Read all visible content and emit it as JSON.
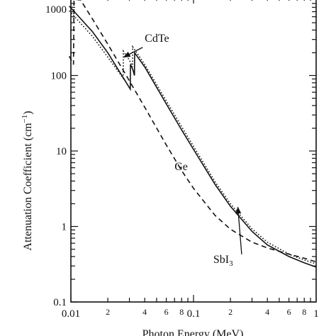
{
  "chart_data": {
    "type": "line",
    "xscale": "log",
    "yscale": "log",
    "xlim": [
      0.01,
      1
    ],
    "ylim": [
      0.1,
      1000
    ],
    "grid": false,
    "xlabel": "Photon Energy (MeV)",
    "ylabel": "Attenuation Coefficient (cm",
    "ylabel_sup": "−1",
    "ylabel_end": ")",
    "x_major_ticks": [
      {
        "value": 0.01,
        "label": "0.01"
      },
      {
        "value": 0.1,
        "label": "0.1"
      },
      {
        "value": 1,
        "label": "1"
      }
    ],
    "x_minor_ticks": [
      {
        "value": 0.02,
        "label": "2"
      },
      {
        "value": 0.04,
        "label": "4"
      },
      {
        "value": 0.06,
        "label": "6"
      },
      {
        "value": 0.08,
        "label": "8"
      },
      {
        "value": 0.2,
        "label": "2"
      },
      {
        "value": 0.4,
        "label": "4"
      },
      {
        "value": 0.6,
        "label": "6"
      },
      {
        "value": 0.8,
        "label": "8"
      }
    ],
    "y_major_ticks": [
      {
        "value": 1000,
        "label": "1000"
      },
      {
        "value": 100,
        "label": "100"
      },
      {
        "value": 10,
        "label": "10"
      },
      {
        "value": 1,
        "label": "1"
      },
      {
        "value": 0.1,
        "label": "0.1"
      }
    ],
    "series": [
      {
        "name": "Ge",
        "style": "dashed",
        "points": [
          [
            0.0097,
            180
          ],
          [
            0.0105,
            140
          ],
          [
            0.0106,
            1020
          ],
          [
            0.012,
            1000
          ],
          [
            0.015,
            560
          ],
          [
            0.02,
            260
          ],
          [
            0.03,
            85
          ],
          [
            0.04,
            38
          ],
          [
            0.06,
            12
          ],
          [
            0.08,
            5.5
          ],
          [
            0.1,
            3.2
          ],
          [
            0.15,
            1.4
          ],
          [
            0.2,
            0.92
          ],
          [
            0.3,
            0.62
          ],
          [
            0.4,
            0.52
          ],
          [
            0.6,
            0.43
          ],
          [
            0.8,
            0.38
          ],
          [
            1.0,
            0.34
          ]
        ]
      },
      {
        "name": "SbI3",
        "style": "solid",
        "points": [
          [
            0.0097,
            830
          ],
          [
            0.015,
            380
          ],
          [
            0.02,
            200
          ],
          [
            0.0305,
            66
          ],
          [
            0.0306,
            140
          ],
          [
            0.032,
            120
          ],
          [
            0.033,
            100
          ],
          [
            0.0331,
            200
          ],
          [
            0.04,
            130
          ],
          [
            0.06,
            42
          ],
          [
            0.08,
            19
          ],
          [
            0.1,
            10.5
          ],
          [
            0.15,
            3.6
          ],
          [
            0.2,
            1.85
          ],
          [
            0.3,
            0.86
          ],
          [
            0.4,
            0.57
          ],
          [
            0.6,
            0.4
          ],
          [
            0.8,
            0.33
          ],
          [
            1.0,
            0.29
          ]
        ]
      },
      {
        "name": "CdTe",
        "style": "dotted",
        "points": [
          [
            0.0097,
            720
          ],
          [
            0.015,
            330
          ],
          [
            0.02,
            175
          ],
          [
            0.0267,
            92
          ],
          [
            0.0268,
            210
          ],
          [
            0.03,
            160
          ],
          [
            0.0318,
            130
          ],
          [
            0.0319,
            240
          ],
          [
            0.04,
            140
          ],
          [
            0.06,
            46
          ],
          [
            0.08,
            21
          ],
          [
            0.1,
            11.5
          ],
          [
            0.15,
            3.9
          ],
          [
            0.2,
            2.0
          ],
          [
            0.3,
            0.93
          ],
          [
            0.4,
            0.62
          ],
          [
            0.6,
            0.43
          ],
          [
            0.8,
            0.36
          ],
          [
            1.0,
            0.32
          ]
        ]
      }
    ],
    "annotations": [
      {
        "text": "CdTe",
        "at": [
          0.04,
          280
        ],
        "arrow_to": [
          0.027,
          175
        ]
      },
      {
        "text": "Ge",
        "at": [
          0.07,
          5.6
        ]
      },
      {
        "text": "SbI",
        "sub": "3",
        "at": [
          0.145,
          0.33
        ],
        "arrow_to": [
          0.23,
          1.8
        ]
      }
    ]
  }
}
